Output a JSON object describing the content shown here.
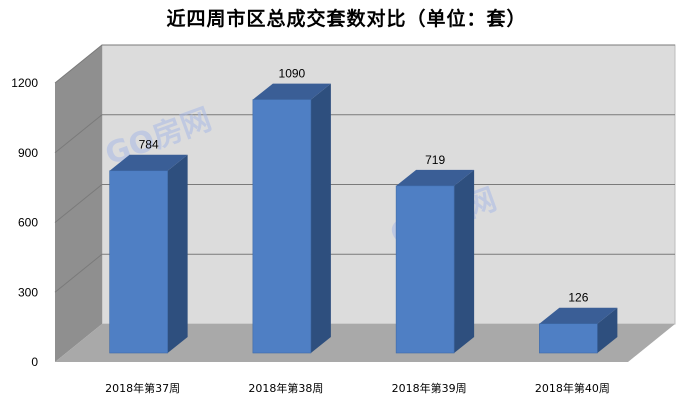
{
  "chart_data": {
    "type": "bar",
    "title": "近四周市区总成交套数对比（单位：套）",
    "categories": [
      "2018年第37周",
      "2018年第38周",
      "2018年第39周",
      "2018年第40周"
    ],
    "values": [
      784,
      1090,
      719,
      126
    ],
    "yticks": [
      0,
      300,
      600,
      900,
      1200
    ],
    "ylim": [
      0,
      1200
    ],
    "grid": true,
    "legend": "none",
    "watermark": "GO房网",
    "colors": {
      "bar_front": "#4f7fc4",
      "bar_side": "#2e4f7e",
      "bar_top": "#3a5e96",
      "wall": "#dcdcdc",
      "floor": "#a9a9a9"
    }
  }
}
